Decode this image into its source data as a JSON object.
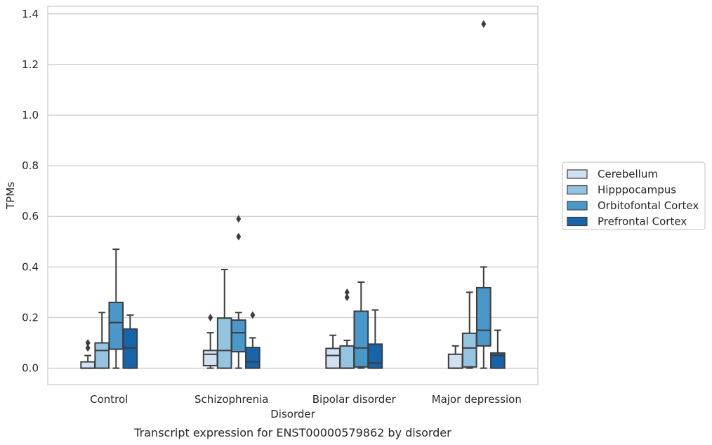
{
  "chart_data": {
    "type": "box",
    "xlabel": "Disorder",
    "ylabel": "TPMs",
    "caption": "Transcript expression for ENST00000579862 by disorder",
    "ylim": [
      -0.065,
      1.43
    ],
    "yticks": [
      0.0,
      0.2,
      0.4,
      0.6,
      0.8,
      1.0,
      1.2,
      1.4
    ],
    "ytick_labels": [
      "0.0",
      "0.2",
      "0.4",
      "0.6",
      "0.8",
      "1.0",
      "1.2",
      "1.4"
    ],
    "categories": [
      "Control",
      "Schizophrenia",
      "Bipolar disorder",
      "Major depression"
    ],
    "grid": "horizontal",
    "legend_position": "right",
    "series": [
      {
        "name": "Cerebellum",
        "color": "#d0e1f2",
        "boxes": [
          {
            "whislo": 0.0,
            "q1": 0.0,
            "med": 0.0,
            "q3": 0.025,
            "whishi": 0.05,
            "fliers": [
              0.08,
              0.1
            ]
          },
          {
            "whislo": 0.0,
            "q1": 0.01,
            "med": 0.055,
            "q3": 0.07,
            "whishi": 0.14,
            "fliers": [
              0.2
            ]
          },
          {
            "whislo": 0.0,
            "q1": 0.0,
            "med": 0.05,
            "q3": 0.078,
            "whishi": 0.13,
            "fliers": []
          },
          {
            "whislo": 0.0,
            "q1": 0.0,
            "med": 0.0,
            "q3": 0.055,
            "whishi": 0.088,
            "fliers": []
          }
        ]
      },
      {
        "name": "Hipppocampus",
        "color": "#94c4df",
        "boxes": [
          {
            "whislo": 0.0,
            "q1": 0.0,
            "med": 0.07,
            "q3": 0.1,
            "whishi": 0.22,
            "fliers": []
          },
          {
            "whislo": 0.0,
            "q1": 0.0,
            "med": 0.07,
            "q3": 0.198,
            "whishi": 0.39,
            "fliers": []
          },
          {
            "whislo": 0.0,
            "q1": 0.0,
            "med": 0.0,
            "q3": 0.088,
            "whishi": 0.11,
            "fliers": [
              0.28,
              0.3
            ]
          },
          {
            "whislo": 0.0,
            "q1": 0.005,
            "med": 0.08,
            "q3": 0.138,
            "whishi": 0.3,
            "fliers": []
          }
        ]
      },
      {
        "name": "Orbitofontal Cortex",
        "color": "#4a98c9",
        "boxes": [
          {
            "whislo": 0.0,
            "q1": 0.075,
            "med": 0.18,
            "q3": 0.26,
            "whishi": 0.47,
            "fliers": []
          },
          {
            "whislo": 0.0,
            "q1": 0.065,
            "med": 0.14,
            "q3": 0.19,
            "whishi": 0.22,
            "fliers": [
              0.52,
              0.59
            ]
          },
          {
            "whislo": 0.0,
            "q1": 0.005,
            "med": 0.08,
            "q3": 0.225,
            "whishi": 0.34,
            "fliers": []
          },
          {
            "whislo": 0.0,
            "q1": 0.088,
            "med": 0.15,
            "q3": 0.318,
            "whishi": 0.4,
            "fliers": [
              1.36
            ]
          }
        ]
      },
      {
        "name": "Prefrontal Cortex",
        "color": "#1764ab",
        "boxes": [
          {
            "whislo": 0.0,
            "q1": 0.0,
            "med": 0.08,
            "q3": 0.155,
            "whishi": 0.21,
            "fliers": []
          },
          {
            "whislo": 0.0,
            "q1": 0.0,
            "med": 0.025,
            "q3": 0.082,
            "whishi": 0.12,
            "fliers": [
              0.21
            ]
          },
          {
            "whislo": 0.0,
            "q1": 0.0,
            "med": 0.02,
            "q3": 0.095,
            "whishi": 0.23,
            "fliers": []
          },
          {
            "whislo": 0.0,
            "q1": 0.0,
            "med": 0.05,
            "q3": 0.06,
            "whishi": 0.15,
            "fliers": []
          }
        ]
      }
    ]
  }
}
